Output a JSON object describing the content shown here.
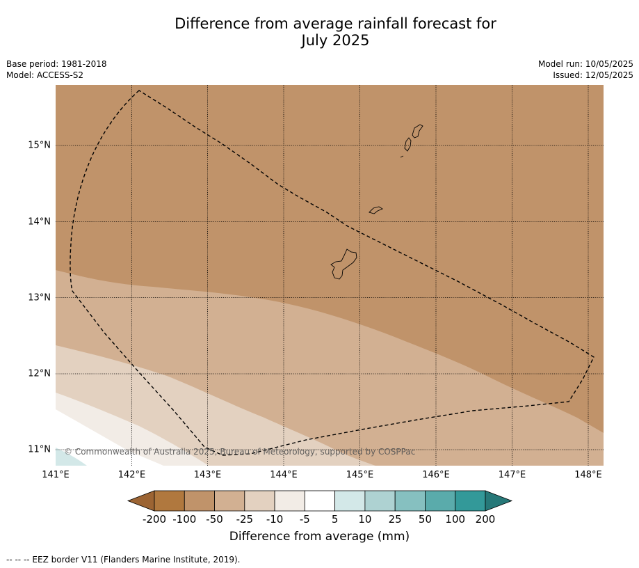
{
  "title_line1": "Difference from average rainfall forecast for",
  "title_line2": "July 2025",
  "meta_left": {
    "base_period": "Base period: 1981-2018",
    "model": "Model: ACCESS-S2"
  },
  "meta_right": {
    "model_run": "Model run: 10/05/2025",
    "issued": "Issued: 12/05/2025"
  },
  "lat_ticks": [
    "15°N",
    "14°N",
    "13°N",
    "12°N",
    "11°N"
  ],
  "lon_ticks": [
    "141°E",
    "142°E",
    "143°E",
    "144°E",
    "145°E",
    "146°E",
    "147°E",
    "148°E"
  ],
  "copyright": "© Commonwealth of Australia 2025, Bureau of Meteorology, supported by COSPPac",
  "colorbar": {
    "ticks": [
      "-200",
      "-100",
      "-50",
      "-25",
      "-10",
      "-5",
      "5",
      "10",
      "25",
      "50",
      "100",
      "200"
    ],
    "colors": [
      "#9c6433",
      "#b0783e",
      "#c0936a",
      "#d2b092",
      "#e3d1c0",
      "#f2ece6",
      "#ffffff",
      "#d3e8e8",
      "#aed2d2",
      "#86c0c0",
      "#5aabab",
      "#339999",
      "#267878"
    ],
    "label": "Difference from average (mm)"
  },
  "footnote": "--  --  -- EEZ border V11 (Flanders Marine Institute, 2019)."
}
